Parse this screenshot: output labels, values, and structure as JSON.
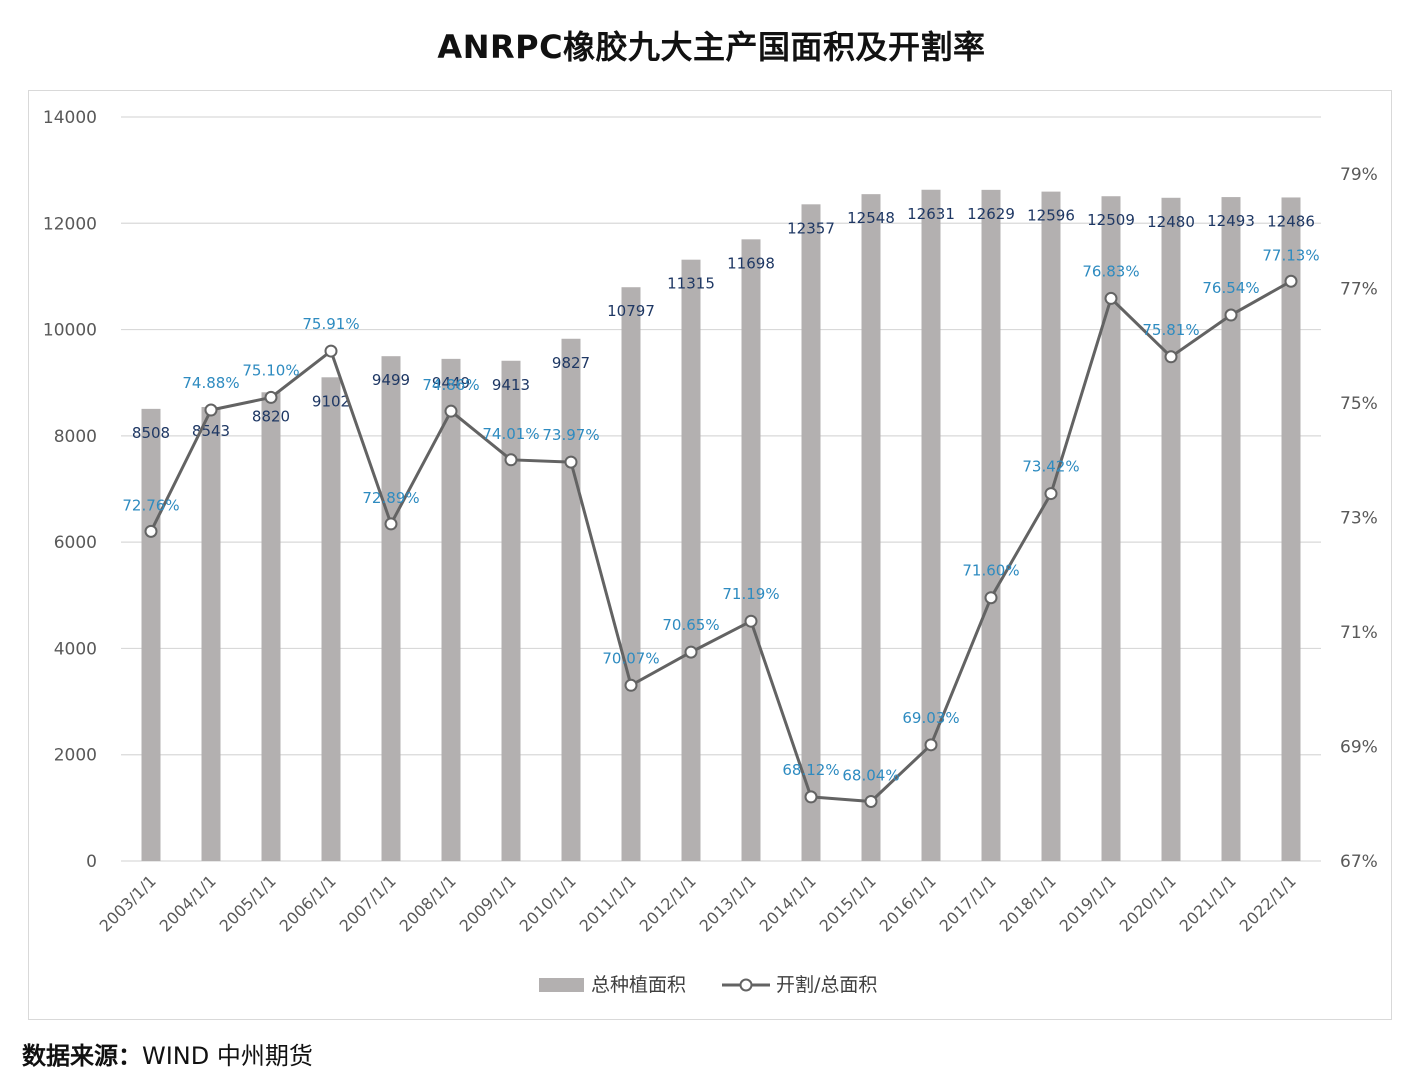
{
  "title": "ANRPC橡胶九大主产国面积及开割率",
  "source": {
    "label": "数据来源：",
    "text": "WIND  中州期货"
  },
  "colors": {
    "bar": "#b3b0b0",
    "line": "#636363",
    "bar_label": "#1f3864",
    "rate_label": "#2e8bc0",
    "axis_text": "#595959",
    "grid": "#d9d9d9"
  },
  "chart_data": {
    "type": "bar",
    "categories": [
      "2003/1/1",
      "2004/1/1",
      "2005/1/1",
      "2006/1/1",
      "2007/1/1",
      "2008/1/1",
      "2009/1/1",
      "2010/1/1",
      "2011/1/1",
      "2012/1/1",
      "2013/1/1",
      "2014/1/1",
      "2015/1/1",
      "2016/1/1",
      "2017/1/1",
      "2018/1/1",
      "2019/1/1",
      "2020/1/1",
      "2021/1/1",
      "2022/1/1"
    ],
    "series": [
      {
        "name": "总种植面积",
        "type": "bar",
        "axis": "left",
        "values": [
          8508,
          8543,
          8820,
          9102,
          9499,
          9449,
          9413,
          9827,
          10797,
          11315,
          11698,
          12357,
          12548,
          12631,
          12629,
          12596,
          12509,
          12480,
          12493,
          12486
        ]
      },
      {
        "name": "开割/总面积",
        "type": "line",
        "axis": "right",
        "values": [
          72.76,
          74.88,
          75.1,
          75.91,
          72.89,
          74.86,
          74.01,
          73.97,
          70.07,
          70.65,
          71.19,
          68.12,
          68.04,
          69.03,
          71.6,
          73.42,
          76.83,
          75.81,
          76.54,
          77.13
        ],
        "labels": [
          "72.76%",
          "74.88%",
          "75.10%",
          "75.91%",
          "72.89%",
          "74.86%",
          "74.01%",
          "73.97%",
          "70.07%",
          "70.65%",
          "71.19%",
          "68.12%",
          "68.04%",
          "69.03%",
          "71.60%",
          "73.42%",
          "76.83%",
          "75.81%",
          "76.54%",
          "77.13%"
        ]
      }
    ],
    "y_left": {
      "ylim": [
        0,
        14000
      ],
      "ticks": [
        "0",
        "2000",
        "4000",
        "6000",
        "8000",
        "10000",
        "12000",
        "14000"
      ]
    },
    "y_right": {
      "ylim": [
        67,
        80
      ],
      "ticks": [
        "67%",
        "69%",
        "71%",
        "73%",
        "75%",
        "77%",
        "79%"
      ]
    },
    "grid": true,
    "legend": "bottom"
  }
}
